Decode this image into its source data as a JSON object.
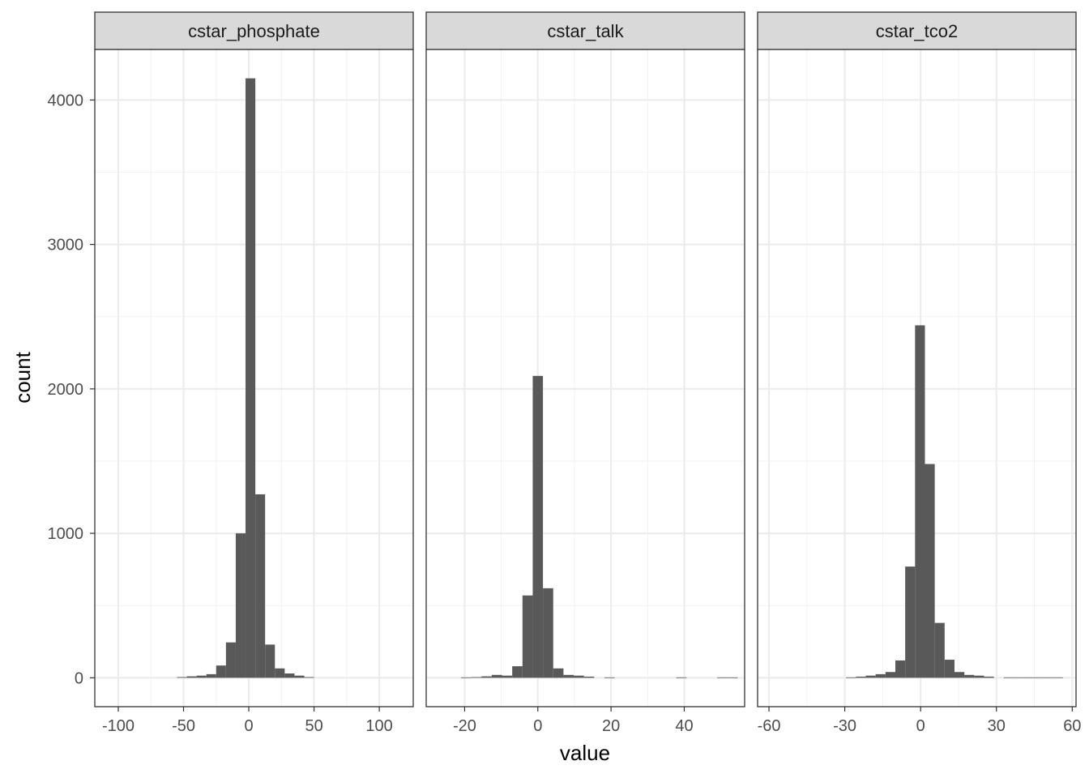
{
  "colors": {
    "bar": "#595959",
    "panel_border": "#333333",
    "strip_fill": "#d9d9d9",
    "grid_major": "#ebebeb",
    "grid_minor": "#f2f2f2",
    "tick_text": "#4d4d4d"
  },
  "chart_data": {
    "type": "bar",
    "xlabel": "value",
    "ylabel": "count",
    "ylim": [
      -200,
      4350
    ],
    "y_ticks": [
      0,
      1000,
      2000,
      3000,
      4000
    ],
    "grid": true,
    "legend": "none",
    "panels": [
      {
        "title": "cstar_phosphate",
        "xlim": [
          -118,
          126
        ],
        "x_ticks": [
          -100,
          -50,
          0,
          50,
          100
        ],
        "bins": [
          {
            "x0": -55,
            "x1": -47.5,
            "count": 5
          },
          {
            "x0": -47.5,
            "x1": -40,
            "count": 10
          },
          {
            "x0": -40,
            "x1": -32.5,
            "count": 15
          },
          {
            "x0": -32.5,
            "x1": -25,
            "count": 25
          },
          {
            "x0": -25,
            "x1": -17.5,
            "count": 85
          },
          {
            "x0": -17.5,
            "x1": -10,
            "count": 245
          },
          {
            "x0": -10,
            "x1": -2.5,
            "count": 1000
          },
          {
            "x0": -2.5,
            "x1": 5,
            "count": 4150
          },
          {
            "x0": 5,
            "x1": 12.5,
            "count": 1270
          },
          {
            "x0": 12.5,
            "x1": 20,
            "count": 230
          },
          {
            "x0": 20,
            "x1": 27.5,
            "count": 65
          },
          {
            "x0": 27.5,
            "x1": 35,
            "count": 30
          },
          {
            "x0": 35,
            "x1": 42.5,
            "count": 15
          },
          {
            "x0": 42.5,
            "x1": 50,
            "count": 5
          }
        ]
      },
      {
        "title": "cstar_talk",
        "xlim": [
          -30.5,
          56.5
        ],
        "x_ticks": [
          -20,
          0,
          20,
          40
        ],
        "bins": [
          {
            "x0": -21,
            "x1": -18.2,
            "count": 3
          },
          {
            "x0": -18.2,
            "x1": -15.4,
            "count": 5
          },
          {
            "x0": -15.4,
            "x1": -12.6,
            "count": 10
          },
          {
            "x0": -12.6,
            "x1": -9.8,
            "count": 20
          },
          {
            "x0": -9.8,
            "x1": -7,
            "count": 15
          },
          {
            "x0": -7,
            "x1": -4.2,
            "count": 80
          },
          {
            "x0": -4.2,
            "x1": -1.4,
            "count": 570
          },
          {
            "x0": -1.4,
            "x1": 1.4,
            "count": 2090
          },
          {
            "x0": 1.4,
            "x1": 4.2,
            "count": 620
          },
          {
            "x0": 4.2,
            "x1": 7,
            "count": 65
          },
          {
            "x0": 7,
            "x1": 9.8,
            "count": 20
          },
          {
            "x0": 9.8,
            "x1": 12.6,
            "count": 15
          },
          {
            "x0": 12.6,
            "x1": 15.4,
            "count": 8
          },
          {
            "x0": 18.2,
            "x1": 21,
            "count": 3
          },
          {
            "x0": 37.8,
            "x1": 40.6,
            "count": 3
          },
          {
            "x0": 49,
            "x1": 51.8,
            "count": 3
          },
          {
            "x0": 51.8,
            "x1": 54.6,
            "count": 3
          }
        ]
      },
      {
        "title": "cstar_tco2",
        "xlim": [
          -64.5,
          61.5
        ],
        "x_ticks": [
          -60,
          -30,
          0,
          30,
          60
        ],
        "bins": [
          {
            "x0": -29.5,
            "x1": -25.6,
            "count": 3
          },
          {
            "x0": -25.6,
            "x1": -21.7,
            "count": 8
          },
          {
            "x0": -21.7,
            "x1": -17.8,
            "count": 15
          },
          {
            "x0": -17.8,
            "x1": -13.9,
            "count": 25
          },
          {
            "x0": -13.9,
            "x1": -10,
            "count": 40
          },
          {
            "x0": -10,
            "x1": -6.1,
            "count": 120
          },
          {
            "x0": -6.1,
            "x1": -2.2,
            "count": 770
          },
          {
            "x0": -2.2,
            "x1": 1.7,
            "count": 2440
          },
          {
            "x0": 1.7,
            "x1": 5.6,
            "count": 1480
          },
          {
            "x0": 5.6,
            "x1": 9.5,
            "count": 380
          },
          {
            "x0": 9.5,
            "x1": 13.4,
            "count": 125
          },
          {
            "x0": 13.4,
            "x1": 17.3,
            "count": 40
          },
          {
            "x0": 17.3,
            "x1": 21.2,
            "count": 20
          },
          {
            "x0": 21.2,
            "x1": 25.1,
            "count": 15
          },
          {
            "x0": 25.1,
            "x1": 29,
            "count": 8
          },
          {
            "x0": 32.9,
            "x1": 36.8,
            "count": 3
          },
          {
            "x0": 36.8,
            "x1": 40.7,
            "count": 3
          },
          {
            "x0": 40.7,
            "x1": 44.6,
            "count": 3
          },
          {
            "x0": 44.6,
            "x1": 48.5,
            "count": 3
          },
          {
            "x0": 48.5,
            "x1": 52.4,
            "count": 3
          },
          {
            "x0": 52.4,
            "x1": 56.3,
            "count": 3
          }
        ]
      }
    ]
  }
}
